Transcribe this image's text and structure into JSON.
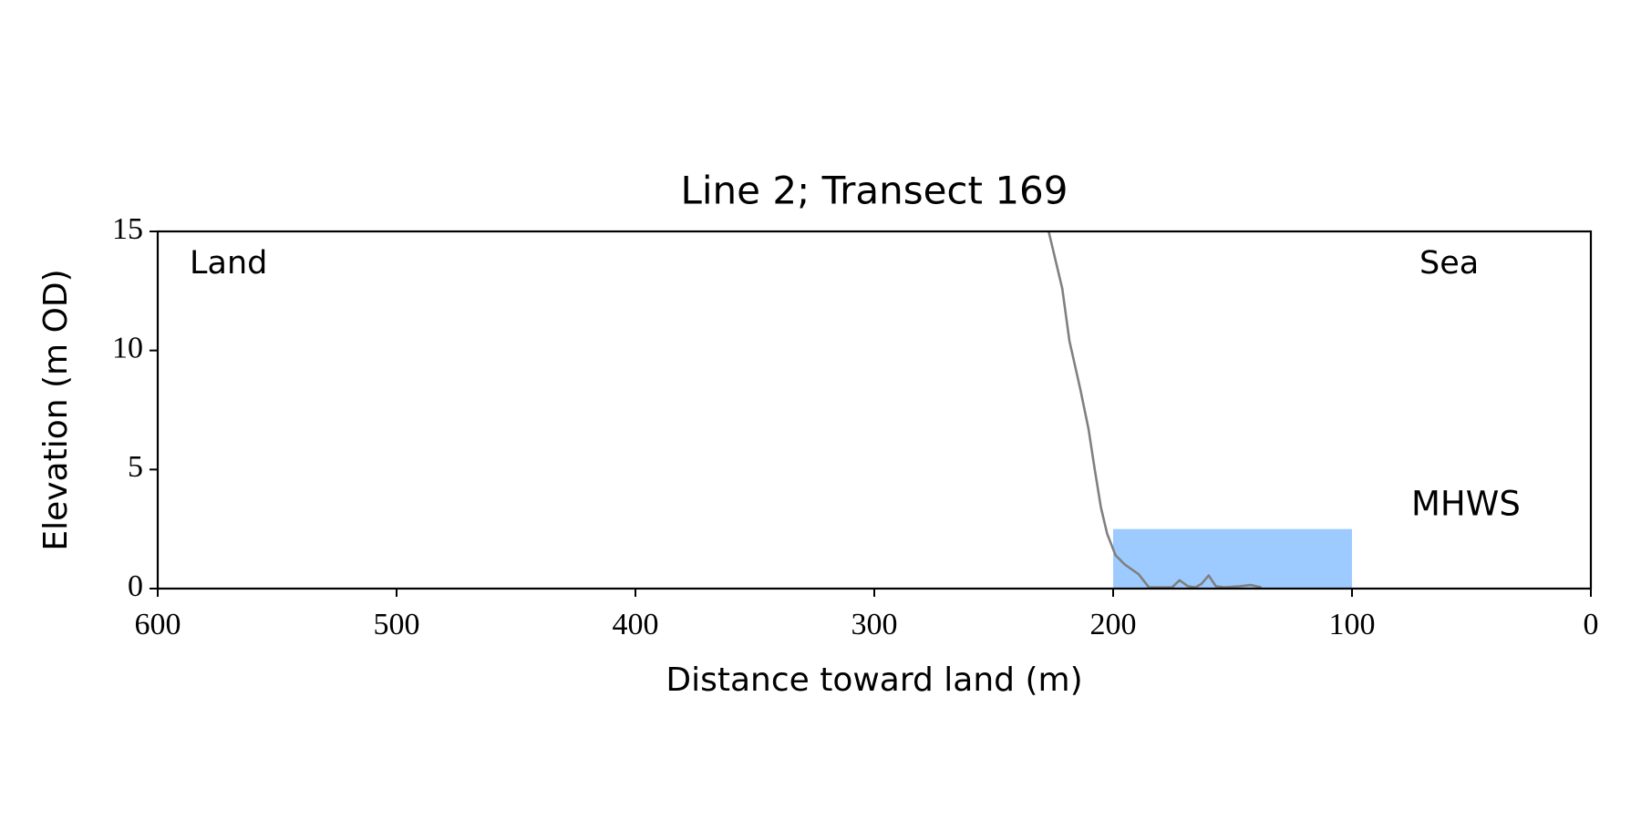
{
  "chart_data": {
    "type": "line",
    "title": "Line 2; Transect 169",
    "x_label": "Distance toward land (m)",
    "y_label": "Elevation (m OD)",
    "annotations": [
      "Land",
      "Sea"
    ],
    "x": [
      227,
      221.3,
      218.3,
      213.8,
      210.3,
      207.7,
      205.1,
      202.5,
      199,
      195,
      189.3,
      185,
      175.3,
      172.2,
      168.7,
      165.6,
      163,
      160,
      157,
      153.4,
      146.8,
      142.4,
      140.2,
      138
    ],
    "series": [
      {
        "color": "#808080",
        "values": [
          15,
          12.6,
          10.4,
          8.4,
          6.7,
          5.0,
          3.4,
          2.3,
          1.4,
          1.0,
          0.6,
          0.05,
          0.05,
          0.35,
          0.1,
          0.05,
          0.2,
          0.55,
          0.1,
          0.05,
          0.1,
          0.15,
          0.1,
          0.05
        ]
      }
    ],
    "mhws": {
      "label": "MHWS",
      "level": 2.5,
      "xrange": [
        200,
        100
      ],
      "color": "#9ecbff",
      "label_color": "#6699cc"
    },
    "xlim": [
      600,
      0
    ],
    "xticks": [
      600,
      500,
      400,
      300,
      200,
      100,
      0
    ],
    "ylim": [
      0,
      15
    ],
    "yticks": [
      0,
      5,
      10,
      15
    ]
  }
}
